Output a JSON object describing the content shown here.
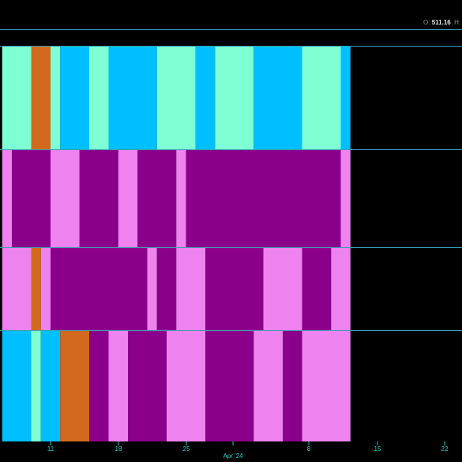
{
  "header": {
    "readout_open_label": "O:",
    "readout_open_value": "511.16",
    "readout_high_label": "H:"
  },
  "chart_data": {
    "type": "heatmap",
    "x_tick_labels": [
      "11",
      "18",
      "25",
      "Apr '24",
      "8",
      "15",
      "22"
    ],
    "month_label": "Apr '24",
    "colors": {
      "aquamarine": "#7fffd4",
      "deepskyblue": "#00bfff",
      "chocolate": "#d2691e",
      "darkmagenta": "#8b008b",
      "violet": "#ee82ee",
      "separator": "#3a9fb0",
      "tick": "#1fd0d0",
      "background": "#000000"
    },
    "rows": [
      {
        "segments": [
          {
            "from": "Mar 6",
            "to": "Mar 9",
            "color": "aquamarine"
          },
          {
            "from": "Mar 9",
            "to": "Mar 11",
            "color": "chocolate"
          },
          {
            "from": "Mar 11",
            "to": "Mar 12",
            "color": "aquamarine"
          },
          {
            "from": "Mar 12",
            "to": "Mar 15",
            "color": "deepskyblue"
          },
          {
            "from": "Mar 15",
            "to": "Mar 17",
            "color": "aquamarine"
          },
          {
            "from": "Mar 17",
            "to": "Mar 22",
            "color": "deepskyblue"
          },
          {
            "from": "Mar 22",
            "to": "Mar 26",
            "color": "aquamarine"
          },
          {
            "from": "Mar 26",
            "to": "Mar 28",
            "color": "deepskyblue"
          },
          {
            "from": "Mar 28",
            "to": "Apr 1",
            "color": "aquamarine"
          },
          {
            "from": "Apr 1",
            "to": "Apr 6",
            "color": "deepskyblue"
          },
          {
            "from": "Apr 6",
            "to": "Apr 10",
            "color": "aquamarine"
          },
          {
            "from": "Apr 10",
            "to": "Apr 11",
            "color": "deepskyblue"
          }
        ]
      },
      {
        "segments": [
          {
            "from": "Mar 6",
            "to": "Mar 7",
            "color": "violet"
          },
          {
            "from": "Mar 7",
            "to": "Mar 11",
            "color": "darkmagenta"
          },
          {
            "from": "Mar 11",
            "to": "Mar 14",
            "color": "violet"
          },
          {
            "from": "Mar 14",
            "to": "Mar 18",
            "color": "darkmagenta"
          },
          {
            "from": "Mar 18",
            "to": "Mar 20",
            "color": "violet"
          },
          {
            "from": "Mar 20",
            "to": "Mar 24",
            "color": "darkmagenta"
          },
          {
            "from": "Mar 24",
            "to": "Mar 25",
            "color": "violet"
          },
          {
            "from": "Mar 25",
            "to": "Apr 10",
            "color": "darkmagenta"
          },
          {
            "from": "Apr 10",
            "to": "Apr 11",
            "color": "violet"
          }
        ]
      },
      {
        "segments": [
          {
            "from": "Mar 6",
            "to": "Mar 9",
            "color": "violet"
          },
          {
            "from": "Mar 9",
            "to": "Mar 10",
            "color": "chocolate"
          },
          {
            "from": "Mar 10",
            "to": "Mar 11",
            "color": "violet"
          },
          {
            "from": "Mar 11",
            "to": "Mar 21",
            "color": "darkmagenta"
          },
          {
            "from": "Mar 21",
            "to": "Mar 22",
            "color": "violet"
          },
          {
            "from": "Mar 22",
            "to": "Mar 24",
            "color": "darkmagenta"
          },
          {
            "from": "Mar 24",
            "to": "Mar 27",
            "color": "violet"
          },
          {
            "from": "Mar 27",
            "to": "Apr 2",
            "color": "darkmagenta"
          },
          {
            "from": "Apr 2",
            "to": "Apr 6",
            "color": "violet"
          },
          {
            "from": "Apr 6",
            "to": "Apr 9",
            "color": "darkmagenta"
          },
          {
            "from": "Apr 9",
            "to": "Apr 11",
            "color": "violet"
          }
        ]
      },
      {
        "segments": [
          {
            "from": "Mar 6",
            "to": "Mar 9",
            "color": "deepskyblue"
          },
          {
            "from": "Mar 9",
            "to": "Mar 10",
            "color": "aquamarine"
          },
          {
            "from": "Mar 10",
            "to": "Mar 12",
            "color": "deepskyblue"
          },
          {
            "from": "Mar 12",
            "to": "Mar 15",
            "color": "chocolate"
          },
          {
            "from": "Mar 15",
            "to": "Mar 17",
            "color": "darkmagenta"
          },
          {
            "from": "Mar 17",
            "to": "Mar 19",
            "color": "violet"
          },
          {
            "from": "Mar 19",
            "to": "Mar 23",
            "color": "darkmagenta"
          },
          {
            "from": "Mar 23",
            "to": "Mar 27",
            "color": "violet"
          },
          {
            "from": "Mar 27",
            "to": "Apr 1",
            "color": "darkmagenta"
          },
          {
            "from": "Apr 1",
            "to": "Apr 4",
            "color": "violet"
          },
          {
            "from": "Apr 4",
            "to": "Apr 6",
            "color": "darkmagenta"
          },
          {
            "from": "Apr 6",
            "to": "Apr 11",
            "color": "violet"
          }
        ]
      }
    ]
  }
}
